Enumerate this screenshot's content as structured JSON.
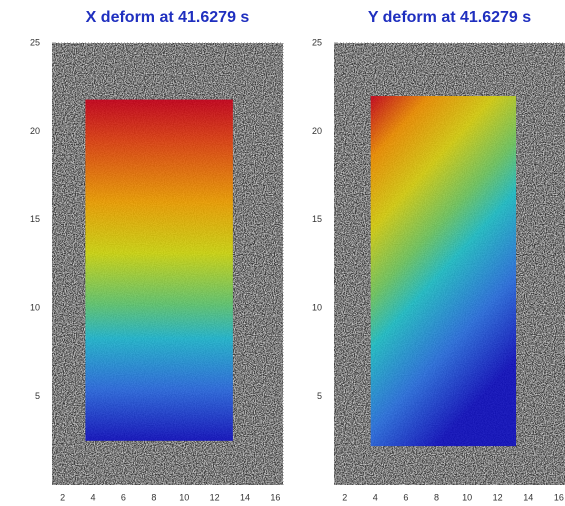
{
  "chart_data": [
    {
      "type": "image",
      "title": "X deform at 41.6279 s",
      "xlim": [
        1.3,
        16.5
      ],
      "ylim": [
        0,
        25
      ],
      "xticks": [
        2,
        4,
        6,
        8,
        10,
        12,
        14,
        16
      ],
      "yticks": [
        5,
        10,
        15,
        20,
        25
      ],
      "overlay_x": [
        3.5,
        13.2
      ],
      "overlay_y": [
        2.5,
        21.8
      ]
    },
    {
      "type": "image",
      "title": "Y deform at 41.6279 s",
      "xlim": [
        1.3,
        16.4
      ],
      "ylim": [
        0,
        25
      ],
      "xticks": [
        2,
        4,
        6,
        8,
        10,
        12,
        14,
        16
      ],
      "yticks": [
        5,
        10,
        15,
        20,
        25
      ],
      "overlay_x": [
        3.7,
        13.2
      ],
      "overlay_y": [
        2.2,
        22
      ]
    }
  ]
}
